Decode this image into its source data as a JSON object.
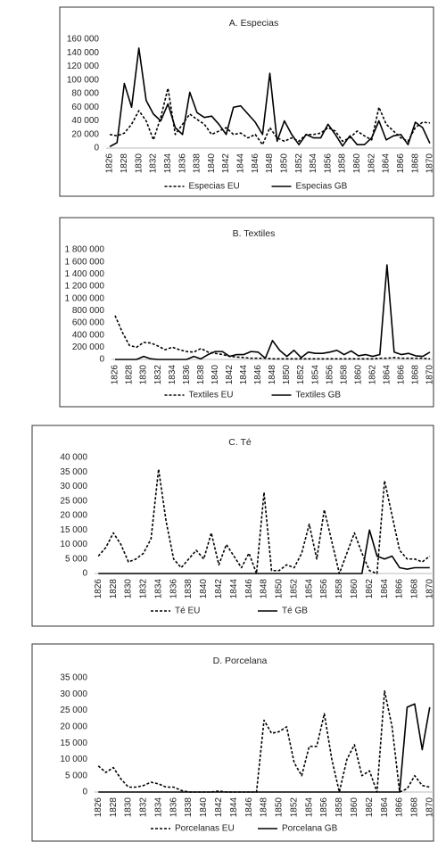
{
  "chart_data": [
    {
      "type": "line",
      "title": "A. Especias",
      "categories": [
        "1826",
        null,
        "1828",
        null,
        "1830",
        null,
        "1832",
        null,
        "1834",
        null,
        "1836",
        null,
        "1838",
        null,
        "1840",
        null,
        "1842",
        null,
        "1844",
        null,
        "1846",
        null,
        "1848",
        null,
        "1850",
        null,
        "1852",
        null,
        "1854",
        null,
        "1856",
        null,
        "1858",
        null,
        "1860",
        null,
        "1862",
        null,
        "1864",
        null,
        "1866",
        null,
        "1868",
        null,
        "1870"
      ],
      "series": [
        {
          "name": "Especias EU",
          "color": "#000000",
          "style": "dashed",
          "values": [
            20000,
            18000,
            22000,
            35000,
            55000,
            40000,
            12000,
            45000,
            88000,
            20000,
            35000,
            50000,
            42000,
            35000,
            20000,
            25000,
            30000,
            20000,
            22000,
            15000,
            20000,
            5000,
            30000,
            15000,
            10000,
            15000,
            10000,
            20000,
            20000,
            22000,
            30000,
            25000,
            10000,
            15000,
            25000,
            18000,
            12000,
            60000,
            35000,
            25000,
            15000,
            10000,
            30000,
            38000,
            37000
          ]
        },
        {
          "name": "Especias GB",
          "color": "#000000",
          "style": "solid",
          "values": [
            2000,
            8000,
            95000,
            60000,
            147000,
            70000,
            50000,
            40000,
            65000,
            30000,
            20000,
            82000,
            52000,
            45000,
            47000,
            35000,
            20000,
            60000,
            62000,
            50000,
            38000,
            20000,
            110000,
            10000,
            40000,
            20000,
            5000,
            20000,
            15000,
            15000,
            35000,
            20000,
            3000,
            18000,
            5000,
            5000,
            15000,
            40000,
            12000,
            18000,
            20000,
            5000,
            38000,
            30000,
            7000
          ]
        }
      ],
      "ylim": [
        0,
        160000
      ],
      "yticks": [
        0,
        {
          "value": 20000,
          "label": "20 000"
        },
        {
          "value": 40000,
          "label": "40 000"
        },
        {
          "value": 60000,
          "label": "60 000"
        },
        {
          "value": 80000,
          "label": "80 000"
        },
        {
          "value": 100000,
          "label": "100 000"
        },
        {
          "value": 120000,
          "label": "120 000"
        },
        {
          "value": 140000,
          "label": "140 000"
        },
        {
          "value": 160000,
          "label": "160 000"
        }
      ],
      "legend": "bottom"
    },
    {
      "type": "line",
      "title": "B. Textiles",
      "categories": [
        "1826",
        null,
        "1828",
        null,
        "1830",
        null,
        "1832",
        null,
        "1834",
        null,
        "1836",
        null,
        "1838",
        null,
        "1840",
        null,
        "1842",
        null,
        "1844",
        null,
        "1846",
        null,
        "1848",
        null,
        "1850",
        null,
        "1852",
        null,
        "1854",
        null,
        "1856",
        null,
        "1858",
        null,
        "1860",
        null,
        "1862",
        null,
        "1864",
        null,
        "1866",
        null,
        "1868",
        null,
        "1870"
      ],
      "series": [
        {
          "name": "Textiles EU",
          "color": "#000000",
          "style": "dashed",
          "values": [
            720000,
            450000,
            230000,
            200000,
            280000,
            270000,
            220000,
            160000,
            200000,
            160000,
            130000,
            120000,
            180000,
            120000,
            100000,
            80000,
            50000,
            40000,
            30000,
            20000,
            20000,
            20000,
            10000,
            10000,
            10000,
            10000,
            10000,
            10000,
            10000,
            10000,
            10000,
            10000,
            10000,
            10000,
            10000,
            10000,
            10000,
            20000,
            20000,
            30000,
            20000,
            20000,
            20000,
            20000,
            10000
          ]
        },
        {
          "name": "Textiles GB",
          "color": "#000000",
          "style": "solid",
          "values": [
            0,
            0,
            0,
            0,
            50000,
            10000,
            0,
            0,
            0,
            0,
            0,
            50000,
            10000,
            80000,
            130000,
            130000,
            50000,
            80000,
            80000,
            130000,
            120000,
            20000,
            310000,
            150000,
            50000,
            150000,
            30000,
            120000,
            100000,
            100000,
            120000,
            150000,
            80000,
            140000,
            60000,
            80000,
            50000,
            80000,
            1550000,
            120000,
            80000,
            100000,
            60000,
            50000,
            120000
          ]
        }
      ],
      "ylim": [
        0,
        1800000
      ],
      "yticks": [
        0,
        {
          "value": 200000,
          "label": "200 000"
        },
        {
          "value": 400000,
          "label": "400 000"
        },
        {
          "value": 600000,
          "label": "600 000"
        },
        {
          "value": 800000,
          "label": "800 000"
        },
        {
          "value": 1000000,
          "label": "1 000 000"
        },
        {
          "value": 1200000,
          "label": "1 200 000"
        },
        {
          "value": 1400000,
          "label": "1 400 000"
        },
        {
          "value": 1600000,
          "label": "1 600 000"
        },
        {
          "value": 1800000,
          "label": "1 800 000"
        }
      ],
      "legend": "bottom"
    },
    {
      "type": "line",
      "title": "C. Té",
      "categories": [
        "1826",
        null,
        "1828",
        null,
        "1830",
        null,
        "1832",
        null,
        "1834",
        null,
        "1836",
        null,
        "1838",
        null,
        "1840",
        null,
        "1842",
        null,
        "1844",
        null,
        "1846",
        null,
        "1848",
        null,
        "1850",
        null,
        "1852",
        null,
        "1854",
        null,
        "1856",
        null,
        "1858",
        null,
        "1860",
        null,
        "1862",
        null,
        "1864",
        null,
        "1866",
        null,
        "1868",
        null,
        "1870"
      ],
      "series": [
        {
          "name": "Té EU",
          "color": "#000000",
          "style": "dashed",
          "values": [
            6000,
            9000,
            14000,
            10000,
            4000,
            5000,
            7000,
            12000,
            36000,
            18000,
            5000,
            2000,
            5000,
            8000,
            5000,
            14000,
            3000,
            10000,
            6000,
            2000,
            7000,
            0,
            28000,
            1000,
            1000,
            3000,
            2000,
            7000,
            17000,
            5000,
            22000,
            11000,
            0,
            7000,
            14000,
            7000,
            1000,
            0,
            32000,
            20000,
            8000,
            5000,
            5000,
            4000,
            6000
          ]
        },
        {
          "name": "Té GB",
          "color": "#000000",
          "style": "solid",
          "values": [
            0,
            0,
            0,
            0,
            0,
            0,
            0,
            0,
            0,
            0,
            0,
            0,
            0,
            0,
            0,
            0,
            0,
            0,
            0,
            0,
            0,
            0,
            0,
            0,
            0,
            0,
            0,
            0,
            0,
            0,
            0,
            0,
            0,
            0,
            0,
            0,
            15000,
            6000,
            5000,
            6000,
            2000,
            1500,
            2000,
            2000,
            2000
          ]
        }
      ],
      "ylim": [
        0,
        40000
      ],
      "yticks": [
        0,
        {
          "value": 5000,
          "label": "5 000"
        },
        {
          "value": 10000,
          "label": "10 000"
        },
        {
          "value": 15000,
          "label": "15 000"
        },
        {
          "value": 20000,
          "label": "20 000"
        },
        {
          "value": 25000,
          "label": "25 000"
        },
        {
          "value": 30000,
          "label": "30 000"
        },
        {
          "value": 35000,
          "label": "35 000"
        },
        {
          "value": 40000,
          "label": "40 000"
        }
      ],
      "legend": "bottom"
    },
    {
      "type": "line",
      "title": "D. Porcelana",
      "categories": [
        "1826",
        null,
        "1828",
        null,
        "1830",
        null,
        "1832",
        null,
        "1834",
        null,
        "1836",
        null,
        "1838",
        null,
        "1840",
        null,
        "1842",
        null,
        "1844",
        null,
        "1846",
        null,
        "1848",
        null,
        "1850",
        null,
        "1852",
        null,
        "1854",
        null,
        "1856",
        null,
        "1858",
        null,
        "1860",
        null,
        "1862",
        null,
        "1864",
        null,
        "1866",
        null,
        "1868",
        null,
        "1870"
      ],
      "series": [
        {
          "name": "Porcelanas EU",
          "color": "#000000",
          "style": "dashed",
          "values": [
            8000,
            6000,
            7500,
            4000,
            1500,
            1500,
            2000,
            3000,
            2500,
            1500,
            1500,
            500,
            0,
            0,
            0,
            0,
            300,
            0,
            0,
            0,
            0,
            0,
            22000,
            18000,
            18500,
            20000,
            9000,
            5000,
            14000,
            14000,
            24000,
            10000,
            0,
            10000,
            14500,
            5000,
            6500,
            0,
            31000,
            20000,
            0,
            1000,
            5000,
            2000,
            1500
          ]
        },
        {
          "name": "Porcelana GB",
          "color": "#000000",
          "style": "solid",
          "values": [
            0,
            0,
            0,
            0,
            0,
            0,
            0,
            0,
            0,
            0,
            0,
            0,
            0,
            0,
            0,
            0,
            0,
            0,
            0,
            0,
            0,
            0,
            0,
            0,
            0,
            0,
            0,
            0,
            0,
            0,
            0,
            0,
            0,
            0,
            0,
            0,
            0,
            0,
            0,
            0,
            0,
            26000,
            27000,
            13000,
            26000
          ]
        }
      ],
      "ylim": [
        0,
        35000
      ],
      "yticks": [
        0,
        {
          "value": 5000,
          "label": "5 000"
        },
        {
          "value": 10000,
          "label": "10 000"
        },
        {
          "value": 15000,
          "label": "15 000"
        },
        {
          "value": 20000,
          "label": "20 000"
        },
        {
          "value": 25000,
          "label": "25 000"
        },
        {
          "value": 30000,
          "label": "30 000"
        },
        {
          "value": 35000,
          "label": "35 000"
        }
      ],
      "legend": "bottom"
    }
  ]
}
